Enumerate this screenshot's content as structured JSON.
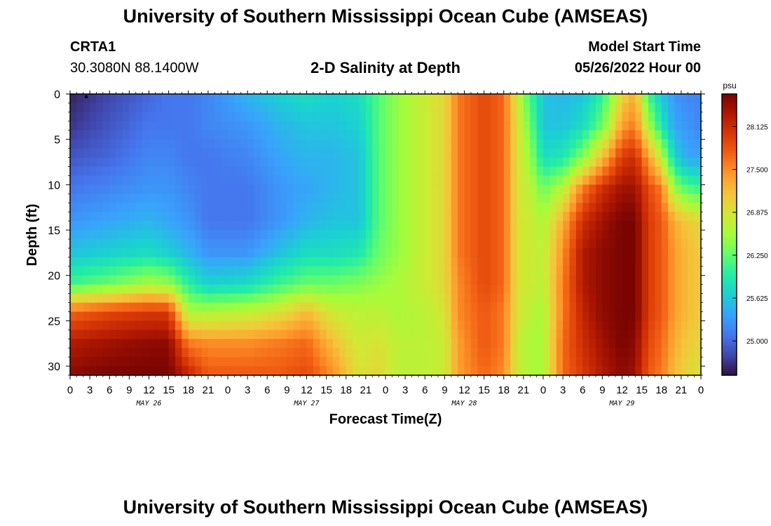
{
  "header": {
    "title": "University of Southern Mississippi Ocean Cube (AMSEAS)",
    "station": "CRTA1",
    "coords": "30.3080N  88.1400W",
    "subtitle": "2-D Salinity at Depth",
    "start_label": "Model Start Time",
    "start_value": "05/26/2022 Hour 00"
  },
  "footer": {
    "title": "University of Southern Mississippi Ocean Cube (AMSEAS)"
  },
  "chart_data": {
    "type": "heatmap",
    "title": "2-D Salinity at Depth",
    "xlabel": "Forecast Time(Z)",
    "ylabel": "Depth (ft)",
    "x_tick_labels": [
      "0",
      "3",
      "6",
      "9",
      "12",
      "15",
      "18",
      "21",
      "0",
      "3",
      "6",
      "9",
      "12",
      "15",
      "18",
      "21",
      "0",
      "3",
      "6",
      "9",
      "12",
      "15",
      "18",
      "21",
      "0",
      "3",
      "6",
      "9",
      "12",
      "15",
      "18",
      "21",
      "0"
    ],
    "x_range_hours": [
      0,
      96
    ],
    "day_labels": [
      {
        "label": "MAY 26",
        "hour": 12
      },
      {
        "label": "MAY 27",
        "hour": 36
      },
      {
        "label": "MAY 28",
        "hour": 60
      },
      {
        "label": "MAY 29",
        "hour": 84
      }
    ],
    "y_ticks": [
      0,
      5,
      10,
      15,
      20,
      25,
      30
    ],
    "y_range_ft": [
      0,
      31
    ],
    "colorbar": {
      "unit": "psu",
      "range": [
        24.5,
        28.6
      ],
      "tick_labels": [
        "28.125",
        "27.500",
        "26.875",
        "26.250",
        "25.625",
        "25.000"
      ]
    },
    "colors": {
      "scale": [
        "#30123b",
        "#4145ab",
        "#4675ed",
        "#39a2fc",
        "#1bcfd4",
        "#24eca6",
        "#61fc6c",
        "#a4fc3b",
        "#d1e834",
        "#f3c63a",
        "#fe9b2d",
        "#f36315",
        "#d93806",
        "#b11901",
        "#7a0402"
      ]
    },
    "time_profiles": [
      {
        "hour": 0,
        "values": [
          24.6,
          24.7,
          24.9,
          25.1,
          25.3,
          25.6,
          26.1,
          27.7,
          28.3,
          28.5
        ]
      },
      {
        "hour": 6,
        "values": [
          24.8,
          24.9,
          25.0,
          25.2,
          25.4,
          25.7,
          26.3,
          27.9,
          28.4,
          28.6
        ]
      },
      {
        "hour": 12,
        "values": [
          25.0,
          25.1,
          25.2,
          25.3,
          25.5,
          25.8,
          26.6,
          28.0,
          28.5,
          28.6
        ]
      },
      {
        "hour": 15,
        "values": [
          25.1,
          25.1,
          25.2,
          25.3,
          25.4,
          25.7,
          26.5,
          28.0,
          28.5,
          28.6
        ]
      },
      {
        "hour": 18,
        "values": [
          25.1,
          25.1,
          25.1,
          25.2,
          25.3,
          25.5,
          26.0,
          26.6,
          27.6,
          28.2
        ]
      },
      {
        "hour": 21,
        "values": [
          25.2,
          25.2,
          25.1,
          25.1,
          25.1,
          25.3,
          25.7,
          26.6,
          27.5,
          27.8
        ]
      },
      {
        "hour": 27,
        "values": [
          25.5,
          25.3,
          25.2,
          25.1,
          25.1,
          25.3,
          25.8,
          26.7,
          27.5,
          27.8
        ]
      },
      {
        "hour": 32,
        "values": [
          25.7,
          25.5,
          25.4,
          25.3,
          25.3,
          25.6,
          26.1,
          26.9,
          27.6,
          27.8
        ]
      },
      {
        "hour": 36,
        "values": [
          25.8,
          25.6,
          25.5,
          25.4,
          25.5,
          25.8,
          26.3,
          27.2,
          27.7,
          27.9
        ]
      },
      {
        "hour": 40,
        "values": [
          25.7,
          25.6,
          25.5,
          25.5,
          25.6,
          25.8,
          26.3,
          26.8,
          27.2,
          27.5
        ]
      },
      {
        "hour": 44,
        "values": [
          25.8,
          25.7,
          25.6,
          25.6,
          25.6,
          25.9,
          26.4,
          26.7,
          26.8,
          26.9
        ]
      },
      {
        "hour": 47,
        "values": [
          26.2,
          26.2,
          26.2,
          26.2,
          26.2,
          26.3,
          26.5,
          26.7,
          26.9,
          27.0
        ]
      },
      {
        "hour": 50,
        "values": [
          26.5,
          26.5,
          26.5,
          26.5,
          26.5,
          26.5,
          26.6,
          26.6,
          26.7,
          26.7
        ]
      },
      {
        "hour": 54,
        "values": [
          26.8,
          26.8,
          26.8,
          26.8,
          26.8,
          26.8,
          26.8,
          26.7,
          26.7,
          26.7
        ]
      },
      {
        "hour": 57,
        "values": [
          27.0,
          27.0,
          27.0,
          27.0,
          27.0,
          27.0,
          27.0,
          26.9,
          26.8,
          26.8
        ]
      },
      {
        "hour": 59,
        "values": [
          27.6,
          27.6,
          27.6,
          27.6,
          27.6,
          27.6,
          27.5,
          27.5,
          27.4,
          27.4
        ]
      },
      {
        "hour": 63,
        "values": [
          27.9,
          27.9,
          27.9,
          27.9,
          27.9,
          27.9,
          27.9,
          27.8,
          27.8,
          27.7
        ]
      },
      {
        "hour": 66,
        "values": [
          27.7,
          27.7,
          27.7,
          27.7,
          27.7,
          27.7,
          27.7,
          27.6,
          27.6,
          27.5
        ]
      },
      {
        "hour": 68,
        "values": [
          26.8,
          26.9,
          26.9,
          26.9,
          26.9,
          26.9,
          26.9,
          26.9,
          26.8,
          26.8
        ]
      },
      {
        "hour": 70,
        "values": [
          26.1,
          26.3,
          26.5,
          26.7,
          26.8,
          26.8,
          26.8,
          26.7,
          26.6,
          26.6
        ]
      },
      {
        "hour": 72,
        "values": [
          25.6,
          25.6,
          25.8,
          26.3,
          26.6,
          26.7,
          26.7,
          26.6,
          26.6,
          26.6
        ]
      },
      {
        "hour": 75,
        "values": [
          25.5,
          25.6,
          25.9,
          26.7,
          27.3,
          27.5,
          27.6,
          27.6,
          27.7,
          27.7
        ]
      },
      {
        "hour": 78,
        "values": [
          25.6,
          25.8,
          26.4,
          27.6,
          28.1,
          28.3,
          28.3,
          28.2,
          28.1,
          28.0
        ]
      },
      {
        "hour": 81,
        "values": [
          26.0,
          26.3,
          27.2,
          28.1,
          28.4,
          28.5,
          28.5,
          28.5,
          28.4,
          28.3
        ]
      },
      {
        "hour": 84,
        "values": [
          27.0,
          27.4,
          28.0,
          28.4,
          28.6,
          28.6,
          28.6,
          28.6,
          28.6,
          28.5
        ]
      },
      {
        "hour": 86,
        "values": [
          27.3,
          27.6,
          28.1,
          28.4,
          28.6,
          28.6,
          28.6,
          28.6,
          28.5,
          28.4
        ]
      },
      {
        "hour": 88,
        "values": [
          26.1,
          26.6,
          27.4,
          27.9,
          28.0,
          28.0,
          28.0,
          28.0,
          27.9,
          27.8
        ]
      },
      {
        "hour": 90,
        "values": [
          25.6,
          25.9,
          26.7,
          27.6,
          27.8,
          27.8,
          27.8,
          27.8,
          27.7,
          27.6
        ]
      },
      {
        "hour": 92,
        "values": [
          25.3,
          25.4,
          25.7,
          26.5,
          27.3,
          27.4,
          27.4,
          27.4,
          27.3,
          27.2
        ]
      },
      {
        "hour": 94,
        "values": [
          25.2,
          25.3,
          25.4,
          26.2,
          27.1,
          27.2,
          27.2,
          27.2,
          27.1,
          27.0
        ]
      },
      {
        "hour": 96,
        "values": [
          25.2,
          25.2,
          25.4,
          26.1,
          27.0,
          27.1,
          27.1,
          27.1,
          27.0,
          26.9
        ]
      }
    ],
    "profile_depths_ft": [
      0,
      3.5,
      7,
      10.5,
      14,
      17.5,
      21,
      24,
      27.5,
      31
    ]
  }
}
